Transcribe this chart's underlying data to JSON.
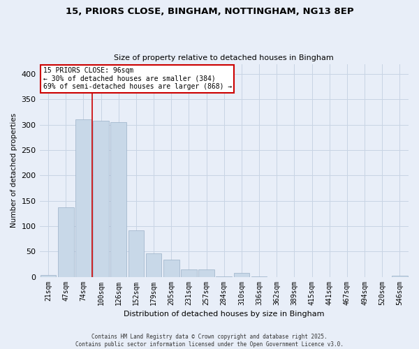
{
  "title_line1": "15, PRIORS CLOSE, BINGHAM, NOTTINGHAM, NG13 8EP",
  "title_line2": "Size of property relative to detached houses in Bingham",
  "xlabel": "Distribution of detached houses by size in Bingham",
  "ylabel": "Number of detached properties",
  "categories": [
    "21sqm",
    "47sqm",
    "74sqm",
    "100sqm",
    "126sqm",
    "152sqm",
    "179sqm",
    "205sqm",
    "231sqm",
    "257sqm",
    "284sqm",
    "310sqm",
    "336sqm",
    "362sqm",
    "389sqm",
    "415sqm",
    "441sqm",
    "467sqm",
    "494sqm",
    "520sqm",
    "546sqm"
  ],
  "values": [
    4,
    137,
    311,
    308,
    305,
    92,
    46,
    34,
    15,
    15,
    1,
    7,
    1,
    0,
    0,
    0,
    0,
    0,
    0,
    0,
    2
  ],
  "bar_color": "#c8d8e8",
  "bar_edge_color": "#9ab0c8",
  "vline_x_index": 3,
  "vline_color": "#cc0000",
  "annotation_text": "15 PRIORS CLOSE: 96sqm\n← 30% of detached houses are smaller (384)\n69% of semi-detached houses are larger (868) →",
  "annotation_box_color": "#ffffff",
  "annotation_box_edge": "#cc0000",
  "grid_color": "#c8d4e4",
  "background_color": "#e8eef8",
  "ylim": [
    0,
    420
  ],
  "yticks": [
    0,
    50,
    100,
    150,
    200,
    250,
    300,
    350,
    400
  ],
  "footer_line1": "Contains HM Land Registry data © Crown copyright and database right 2025.",
  "footer_line2": "Contains public sector information licensed under the Open Government Licence v3.0."
}
